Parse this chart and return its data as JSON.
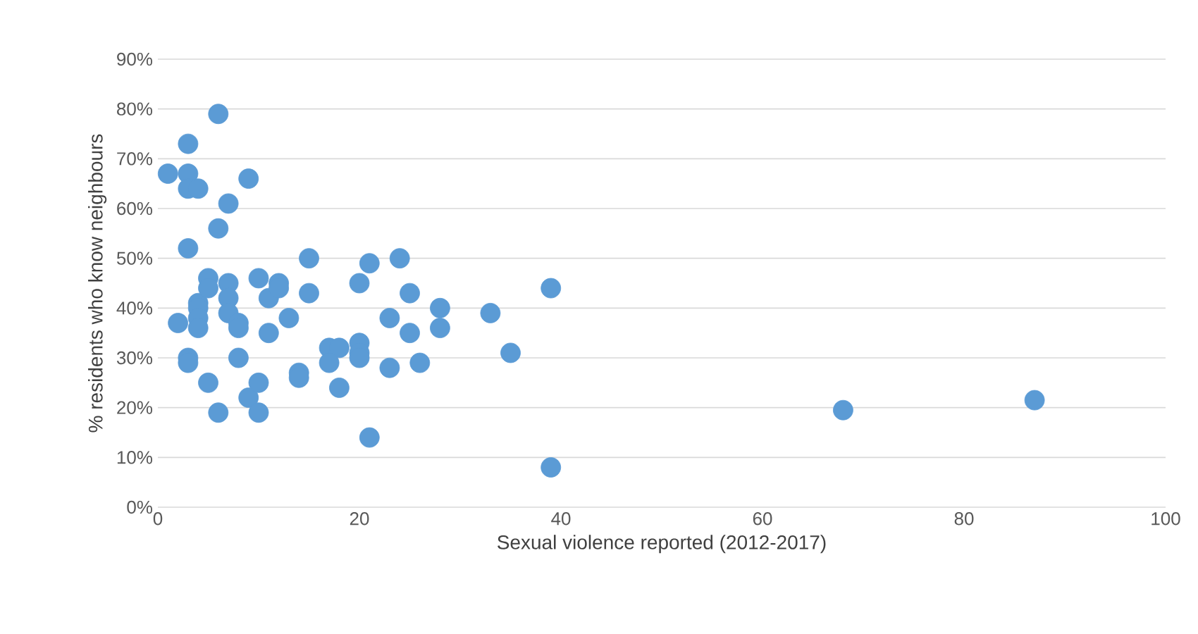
{
  "chart_data": {
    "type": "scatter",
    "xlabel": "Sexual violence reported (2012-2017)",
    "ylabel": "% residents who know neighbours",
    "x": [
      1,
      2,
      3,
      3,
      3,
      3,
      3,
      3,
      4,
      4,
      4,
      4,
      4,
      5,
      5,
      5,
      6,
      6,
      6,
      7,
      7,
      7,
      7,
      8,
      8,
      8,
      9,
      9,
      10,
      10,
      10,
      11,
      11,
      12,
      12,
      13,
      14,
      14,
      15,
      15,
      21,
      20,
      24,
      25,
      28,
      33,
      39,
      23,
      25,
      28,
      17,
      18,
      17,
      20,
      20,
      20,
      23,
      26,
      35,
      18,
      21,
      39,
      68,
      87
    ],
    "values": [
      67,
      37,
      73,
      67,
      64,
      52,
      30,
      29,
      64,
      41,
      40,
      38,
      36,
      46,
      44,
      25,
      79,
      56,
      19,
      61,
      45,
      42,
      39,
      37,
      36,
      30,
      66,
      22,
      46,
      25,
      19,
      35,
      42,
      45,
      44,
      38,
      27,
      26,
      50,
      43,
      49,
      45,
      50,
      43,
      40,
      39,
      44,
      38,
      35,
      36,
      32,
      32,
      29,
      33,
      31,
      30,
      28,
      29,
      31,
      24,
      14,
      8,
      19.5,
      21.5
    ],
    "color": "#5b9bd5",
    "marker": "circle",
    "grid": "y",
    "xlim": [
      0,
      100
    ],
    "xticks": [
      0,
      20,
      40,
      60,
      80,
      100
    ],
    "ylim": [
      0,
      90
    ],
    "yticks": [
      {
        "value": 0,
        "label": "0%"
      },
      {
        "value": 10,
        "label": "10%"
      },
      {
        "value": 20,
        "label": "20%"
      },
      {
        "value": 30,
        "label": "30%"
      },
      {
        "value": 40,
        "label": "40%"
      },
      {
        "value": 50,
        "label": "50%"
      },
      {
        "value": 60,
        "label": "60%"
      },
      {
        "value": 70,
        "label": "70%"
      },
      {
        "value": 80,
        "label": "80%"
      },
      {
        "value": 90,
        "label": "90%"
      }
    ]
  }
}
